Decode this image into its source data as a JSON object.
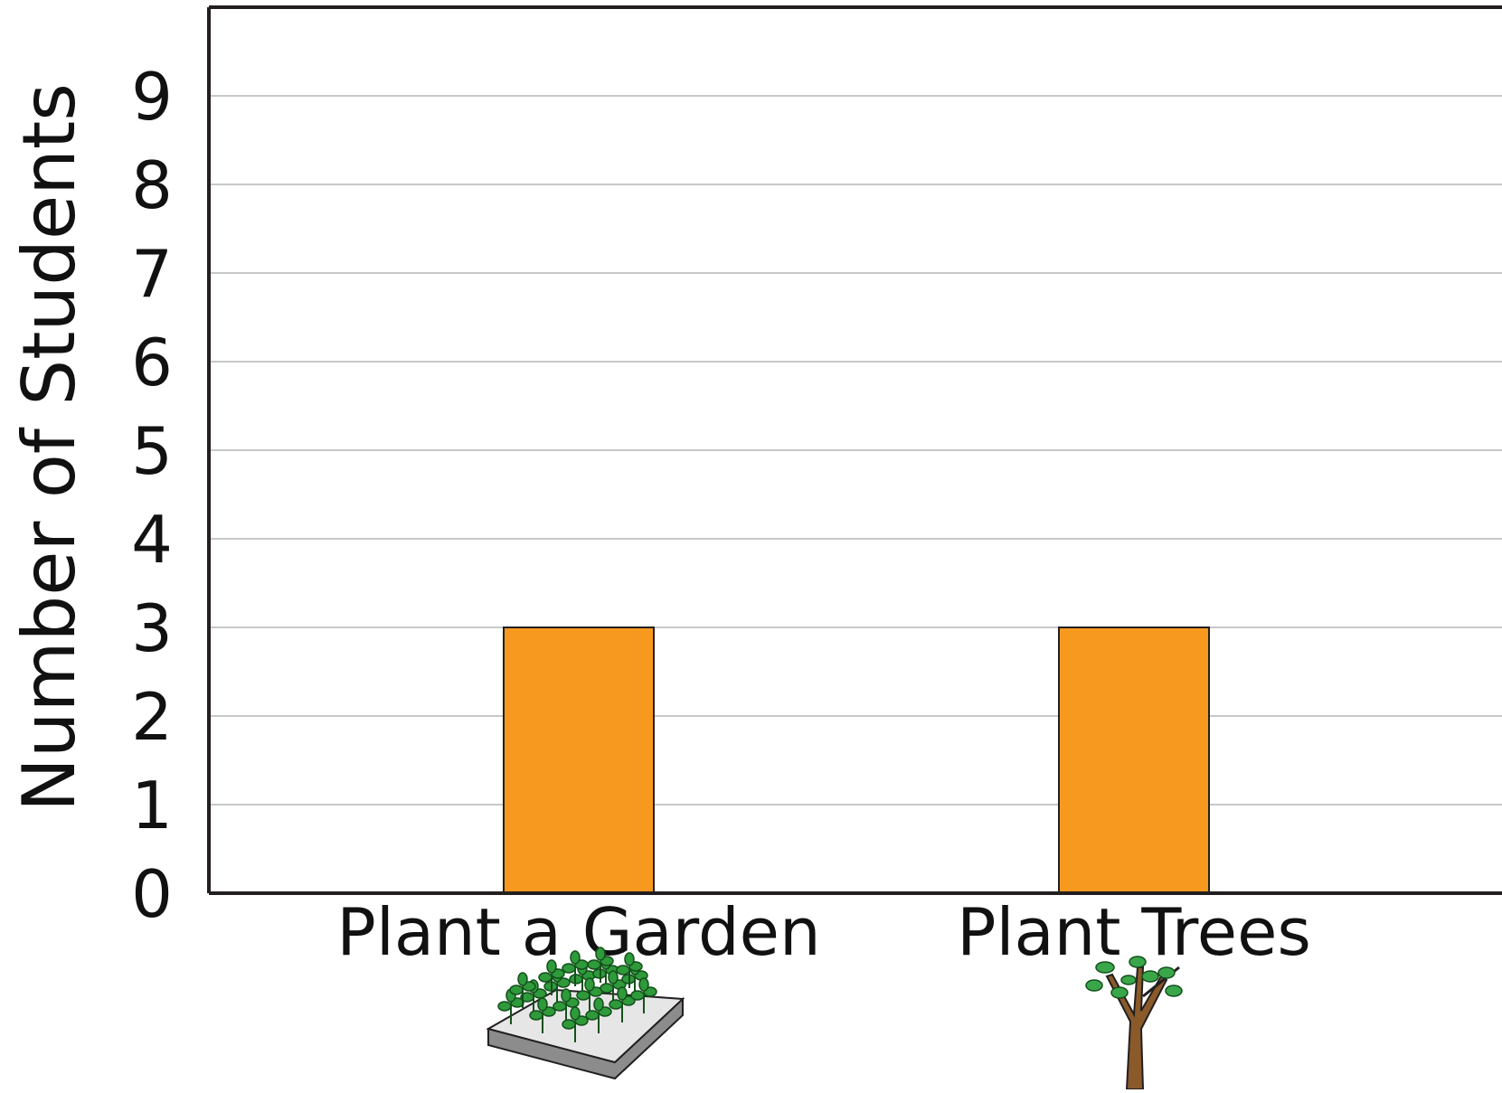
{
  "chart_data": {
    "type": "bar",
    "categories": [
      "Plant a Garden",
      "Plant Trees"
    ],
    "values": [
      3,
      3
    ],
    "ylabel": "Number of Students",
    "xlabel": "",
    "ylim": [
      0,
      10
    ],
    "yticks": [
      0,
      1,
      2,
      3,
      4,
      5,
      6,
      7,
      8,
      9
    ],
    "grid": true,
    "category_icons": [
      "garden-bed-icon",
      "tree-icon"
    ],
    "colors": {
      "bar": "#F7991F",
      "bar_outline": "#231F20",
      "grid": "#C8C8C8",
      "axis": "#231F20"
    }
  }
}
